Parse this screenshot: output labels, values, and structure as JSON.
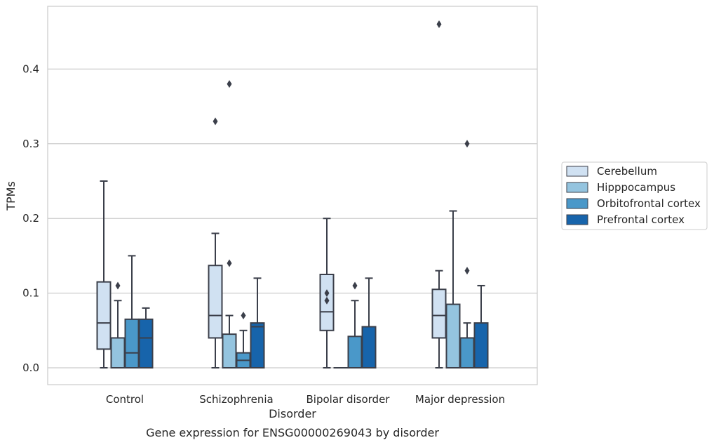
{
  "chart_data": {
    "type": "box",
    "title": "",
    "caption": "Gene expression for ENSG00000269043 by disorder",
    "xlabel": "Disorder",
    "ylabel": "TPMs",
    "ylim": [
      -0.022,
      0.484
    ],
    "yticks": [
      0.0,
      0.1,
      0.2,
      0.3,
      0.4
    ],
    "ytick_labels": [
      "0.0",
      "0.1",
      "0.2",
      "0.3",
      "0.4"
    ],
    "grid": true,
    "legend_position": "right",
    "categories": [
      "Control",
      "Schizophrenia",
      "Bipolar disorder",
      "Major depression"
    ],
    "series": [
      {
        "name": "Cerebellum",
        "color": "#d0e1f2",
        "boxes": [
          {
            "min": 0.0,
            "q1": 0.025,
            "median": 0.06,
            "q3": 0.115,
            "max": 0.25,
            "outliers": []
          },
          {
            "min": 0.0,
            "q1": 0.04,
            "median": 0.07,
            "q3": 0.137,
            "max": 0.18,
            "outliers": [
              0.33
            ]
          },
          {
            "min": 0.0,
            "q1": 0.05,
            "median": 0.075,
            "q3": 0.125,
            "max": 0.2,
            "outliers": [
              0.1,
              0.09
            ]
          },
          {
            "min": 0.0,
            "q1": 0.04,
            "median": 0.07,
            "q3": 0.105,
            "max": 0.13,
            "outliers": [
              0.46
            ]
          }
        ]
      },
      {
        "name": "Hipppocampus",
        "color": "#94c4df",
        "boxes": [
          {
            "min": 0.0,
            "q1": 0.0,
            "median": 0.0,
            "q3": 0.04,
            "max": 0.09,
            "outliers": [
              0.11
            ]
          },
          {
            "min": 0.0,
            "q1": 0.0,
            "median": 0.0,
            "q3": 0.045,
            "max": 0.07,
            "outliers": [
              0.38,
              0.14
            ]
          },
          {
            "min": 0.0,
            "q1": 0.0,
            "median": 0.0,
            "q3": 0.0,
            "max": 0.0,
            "outliers": []
          },
          {
            "min": 0.0,
            "q1": 0.0,
            "median": 0.0,
            "q3": 0.085,
            "max": 0.21,
            "outliers": []
          }
        ]
      },
      {
        "name": "Orbitofrontal cortex",
        "color": "#4a98c9",
        "boxes": [
          {
            "min": 0.0,
            "q1": 0.0,
            "median": 0.02,
            "q3": 0.065,
            "max": 0.15,
            "outliers": []
          },
          {
            "min": 0.0,
            "q1": 0.0,
            "median": 0.01,
            "q3": 0.02,
            "max": 0.05,
            "outliers": [
              0.07
            ]
          },
          {
            "min": 0.0,
            "q1": 0.0,
            "median": 0.0,
            "q3": 0.042,
            "max": 0.09,
            "outliers": [
              0.11
            ]
          },
          {
            "min": 0.0,
            "q1": 0.0,
            "median": 0.0,
            "q3": 0.04,
            "max": 0.06,
            "outliers": [
              0.3,
              0.13
            ]
          }
        ]
      },
      {
        "name": "Prefrontal cortex",
        "color": "#1764ab",
        "boxes": [
          {
            "min": 0.0,
            "q1": 0.0,
            "median": 0.04,
            "q3": 0.065,
            "max": 0.08,
            "outliers": []
          },
          {
            "min": 0.0,
            "q1": 0.0,
            "median": 0.055,
            "q3": 0.06,
            "max": 0.12,
            "outliers": []
          },
          {
            "min": 0.0,
            "q1": 0.0,
            "median": 0.0,
            "q3": 0.055,
            "max": 0.12,
            "outliers": []
          },
          {
            "min": 0.0,
            "q1": 0.0,
            "median": 0.0,
            "q3": 0.06,
            "max": 0.11,
            "outliers": []
          }
        ]
      }
    ]
  }
}
